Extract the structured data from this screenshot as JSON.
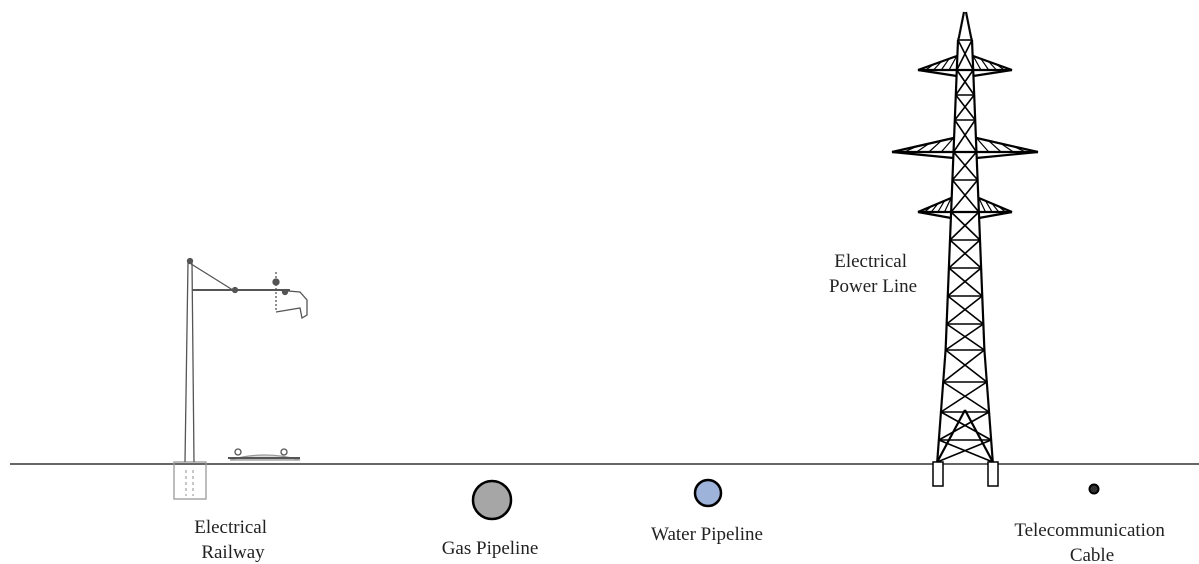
{
  "labels": {
    "railway": [
      "Electrical",
      "Railway"
    ],
    "gas": "Gas Pipeline",
    "water": "Water Pipeline",
    "power": [
      "Electrical",
      "Power Line"
    ],
    "telecom": [
      "Telecommunication",
      "Cable"
    ]
  }
}
